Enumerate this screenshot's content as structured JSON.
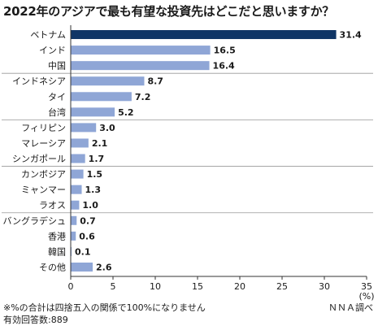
{
  "chart_data": {
    "type": "bar",
    "orientation": "horizontal",
    "title": "2022年のアジアで最も有望な投資先はどこだと思いますか？",
    "categories": [
      "ベトナム",
      "インド",
      "中国",
      "インドネシア",
      "タイ",
      "台湾",
      "フィリピン",
      "マレーシア",
      "シンガポール",
      "カンボジア",
      "ミャンマー",
      "ラオス",
      "バングラデシュ",
      "香港",
      "韓国",
      "その他"
    ],
    "values": [
      31.4,
      16.5,
      16.4,
      8.7,
      7.2,
      5.2,
      3.0,
      2.1,
      1.7,
      1.5,
      1.3,
      1.0,
      0.7,
      0.6,
      0.1,
      2.6
    ],
    "value_labels": [
      "31.4",
      "16.5",
      "16.4",
      "8.7",
      "7.2",
      "5.2",
      "3.0",
      "2.1",
      "1.7",
      "1.5",
      "1.3",
      "1.0",
      "0.7",
      "0.6",
      "0.1",
      "2.6"
    ],
    "highlight_index": 0,
    "group_separators_after": [
      2,
      5,
      8,
      11
    ],
    "xlim": [
      0,
      35
    ],
    "xticks": [
      "0",
      "5",
      "10",
      "15",
      "20",
      "25",
      "30",
      "35"
    ],
    "unit": "(%)",
    "grid": false,
    "colors": {
      "highlight": "#0f3566",
      "bar": "#8fa6d6",
      "axis": "#333333",
      "separator": "#999999"
    }
  },
  "footer": {
    "note": "※%の合計は四捨五入の関係で100%になりません",
    "source": "ＮＮＡ調べ",
    "total": "有効回答数:889"
  }
}
